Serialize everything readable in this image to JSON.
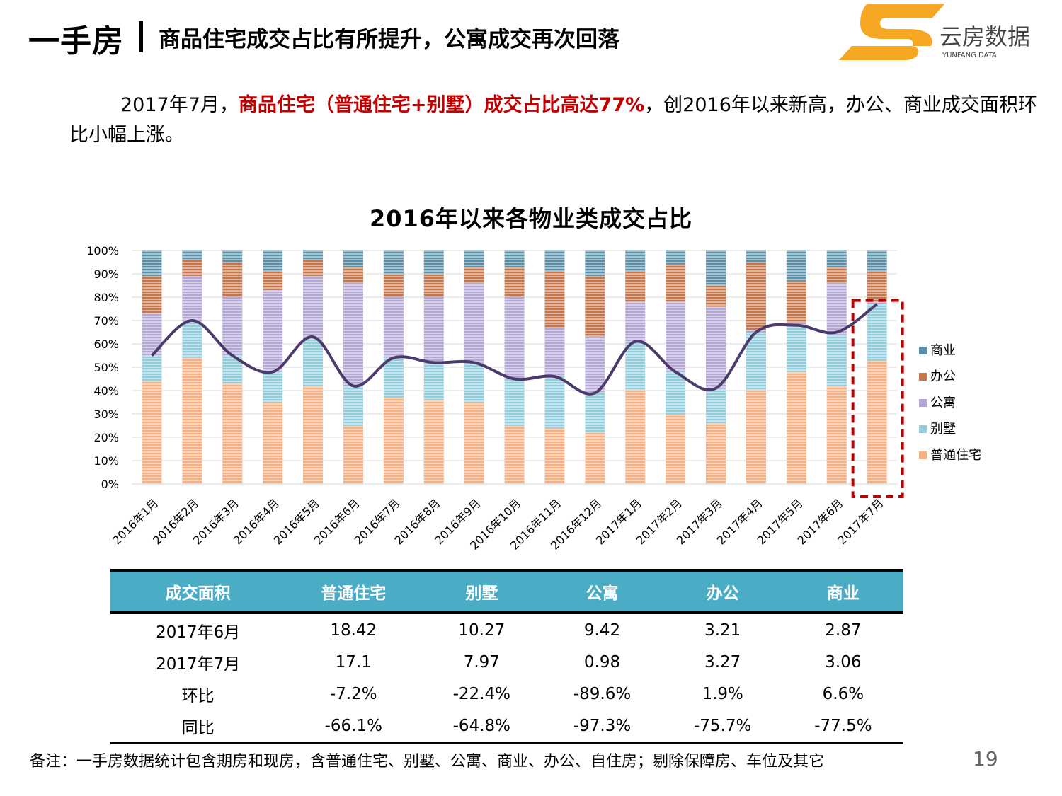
{
  "header": {
    "title": "一手房",
    "subtitle": "商品住宅成交占比有所提升，公寓成交再次回落"
  },
  "logo": {
    "name": "云房数据",
    "sub": "YUNFANG DATA",
    "accent": "#f5a623"
  },
  "intro": {
    "pre": "2017年7月，",
    "highlight": "商品住宅（普通住宅+别墅）成交占比高达77%",
    "post": "，创2016年以来新高，办公、商业成交面积环比小幅上涨。"
  },
  "chart_data": {
    "type": "bar",
    "stacked": true,
    "title": "2016年以来各物业类成交占比",
    "categories": [
      "2016年1月",
      "2016年2月",
      "2016年3月",
      "2016年4月",
      "2016年5月",
      "2016年6月",
      "2016年7月",
      "2016年8月",
      "2016年9月",
      "2016年10月",
      "2016年11月",
      "2016年12月",
      "2017年1月",
      "2017年2月",
      "2017年3月",
      "2017年4月",
      "2017年5月",
      "2017年6月",
      "2017年7月"
    ],
    "y_ticks": [
      "0%",
      "10%",
      "20%",
      "30%",
      "40%",
      "50%",
      "60%",
      "70%",
      "80%",
      "90%",
      "100%"
    ],
    "ylim": [
      0,
      100
    ],
    "grid": true,
    "legend_position": "right",
    "series": [
      {
        "name": "普通住宅",
        "color": "#f4b183",
        "values": [
          44,
          54,
          43,
          35,
          42,
          25,
          37,
          36,
          35,
          25,
          24,
          22,
          40,
          30,
          26,
          40,
          48,
          42,
          53
        ]
      },
      {
        "name": "别墅",
        "color": "#92cddc",
        "values": [
          11,
          16,
          12,
          13,
          20,
          17,
          17,
          16,
          17,
          20,
          22,
          17,
          21,
          18,
          15,
          25,
          20,
          22,
          24
        ]
      },
      {
        "name": "公寓",
        "color": "#b4a7d6",
        "values": [
          18,
          19,
          25,
          35,
          27,
          44,
          26,
          28,
          34,
          35,
          21,
          24,
          17,
          30,
          35,
          1,
          1,
          22,
          1
        ]
      },
      {
        "name": "办公",
        "color": "#c5764a",
        "values": [
          16,
          7,
          15,
          8,
          7,
          7,
          10,
          10,
          7,
          13,
          24,
          26,
          13,
          16,
          9,
          29,
          18,
          7,
          13
        ]
      },
      {
        "name": "商业",
        "color": "#5b8fa8",
        "values": [
          11,
          4,
          5,
          9,
          4,
          7,
          10,
          10,
          7,
          7,
          9,
          11,
          9,
          6,
          15,
          5,
          13,
          7,
          9
        ]
      }
    ],
    "line": {
      "name": "商品住宅占比",
      "color": "#4b3a6b",
      "values": [
        55,
        70,
        55,
        48,
        63,
        42,
        54,
        52,
        52,
        45,
        46,
        39,
        61,
        48,
        41,
        65,
        68,
        65,
        77
      ]
    },
    "highlight_category": "2017年7月",
    "highlight_color": "#c00000"
  },
  "table": {
    "headers": [
      "成交面积",
      "普通住宅",
      "别墅",
      "公寓",
      "办公",
      "商业"
    ],
    "rows": [
      [
        "2017年6月",
        "18.42",
        "10.27",
        "9.42",
        "3.21",
        "2.87"
      ],
      [
        "2017年7月",
        "17.1",
        "7.97",
        "0.98",
        "3.27",
        "3.06"
      ],
      [
        "环比",
        "-7.2%",
        "-22.4%",
        "-89.6%",
        "1.9%",
        "6.6%"
      ],
      [
        "同比",
        "-66.1%",
        "-64.8%",
        "-97.3%",
        "-75.7%",
        "-77.5%"
      ]
    ]
  },
  "footnote": "备注：一手房数据统计包含期房和现房，含普通住宅、别墅、公寓、商业、办公、自住房；剔除保障房、车位及其它",
  "page_number": "19"
}
